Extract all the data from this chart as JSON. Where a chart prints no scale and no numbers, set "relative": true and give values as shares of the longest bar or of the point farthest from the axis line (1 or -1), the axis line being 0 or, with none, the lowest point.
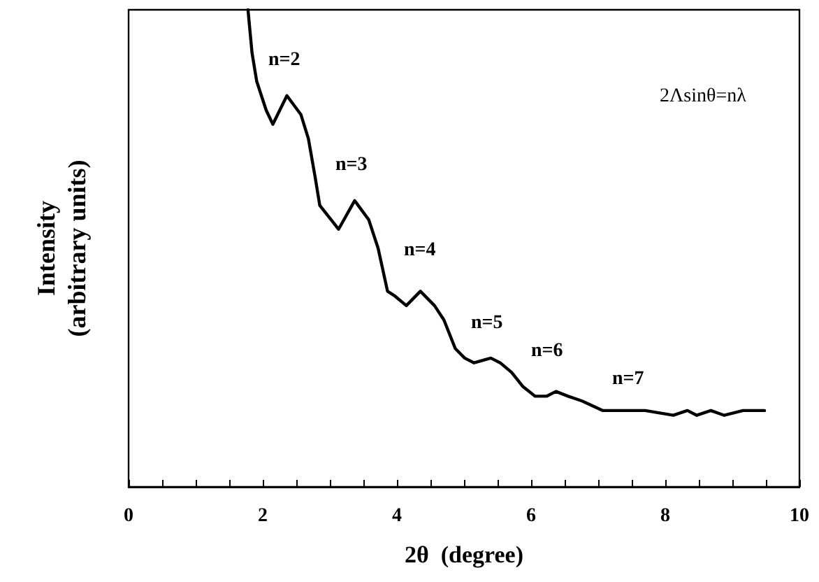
{
  "chart_data": {
    "type": "line",
    "xlabel": "2θ  (degree)",
    "ylabel": "Intensity\n(arbitrary units)",
    "relative": true,
    "x": [
      1.78,
      1.84,
      1.91,
      2.05,
      2.15,
      2.36,
      2.57,
      2.68,
      2.78,
      2.85,
      3.13,
      3.37,
      3.58,
      3.72,
      3.86,
      3.97,
      4.14,
      4.35,
      4.56,
      4.7,
      4.87,
      5.01,
      5.15,
      5.4,
      5.54,
      5.71,
      5.88,
      6.06,
      6.23,
      6.37,
      6.55,
      6.76,
      7.07,
      7.49,
      7.7,
      8.12,
      8.33,
      8.47,
      8.68,
      8.88,
      9.16,
      9.48
    ],
    "series": [
      {
        "color": "#000000",
        "values": [
          1.0,
          0.91,
          0.85,
          0.79,
          0.76,
          0.82,
          0.78,
          0.73,
          0.65,
          0.59,
          0.54,
          0.6,
          0.56,
          0.5,
          0.41,
          0.4,
          0.38,
          0.41,
          0.38,
          0.35,
          0.29,
          0.27,
          0.26,
          0.27,
          0.26,
          0.24,
          0.21,
          0.19,
          0.19,
          0.2,
          0.19,
          0.18,
          0.16,
          0.16,
          0.16,
          0.15,
          0.16,
          0.15,
          0.16,
          0.15,
          0.16,
          0.16
        ]
      }
    ],
    "xlim": [
      0,
      10
    ],
    "xticks": [
      0,
      {
        "value": 0.5,
        "label": null
      },
      {
        "value": 1,
        "label": null
      },
      {
        "value": 1.5,
        "label": null
      },
      2,
      {
        "value": 2.5,
        "label": null
      },
      {
        "value": 3,
        "label": null
      },
      {
        "value": 3.5,
        "label": null
      },
      4,
      {
        "value": 4.5,
        "label": null
      },
      {
        "value": 5,
        "label": null
      },
      {
        "value": 5.5,
        "label": null
      },
      6,
      {
        "value": 6.5,
        "label": null
      },
      {
        "value": 7,
        "label": null
      },
      {
        "value": 7.5,
        "label": null
      },
      8,
      {
        "value": 8.5,
        "label": null
      },
      {
        "value": 9,
        "label": null
      },
      {
        "value": 9.5,
        "label": null
      },
      10
    ],
    "annotations": [
      "n=2",
      "n=3",
      "n=4",
      "n=5",
      "n=6",
      "n=7",
      "2Λsinθ=nλ"
    ],
    "grid": false,
    "marker": "none",
    "line_style": "solid"
  }
}
